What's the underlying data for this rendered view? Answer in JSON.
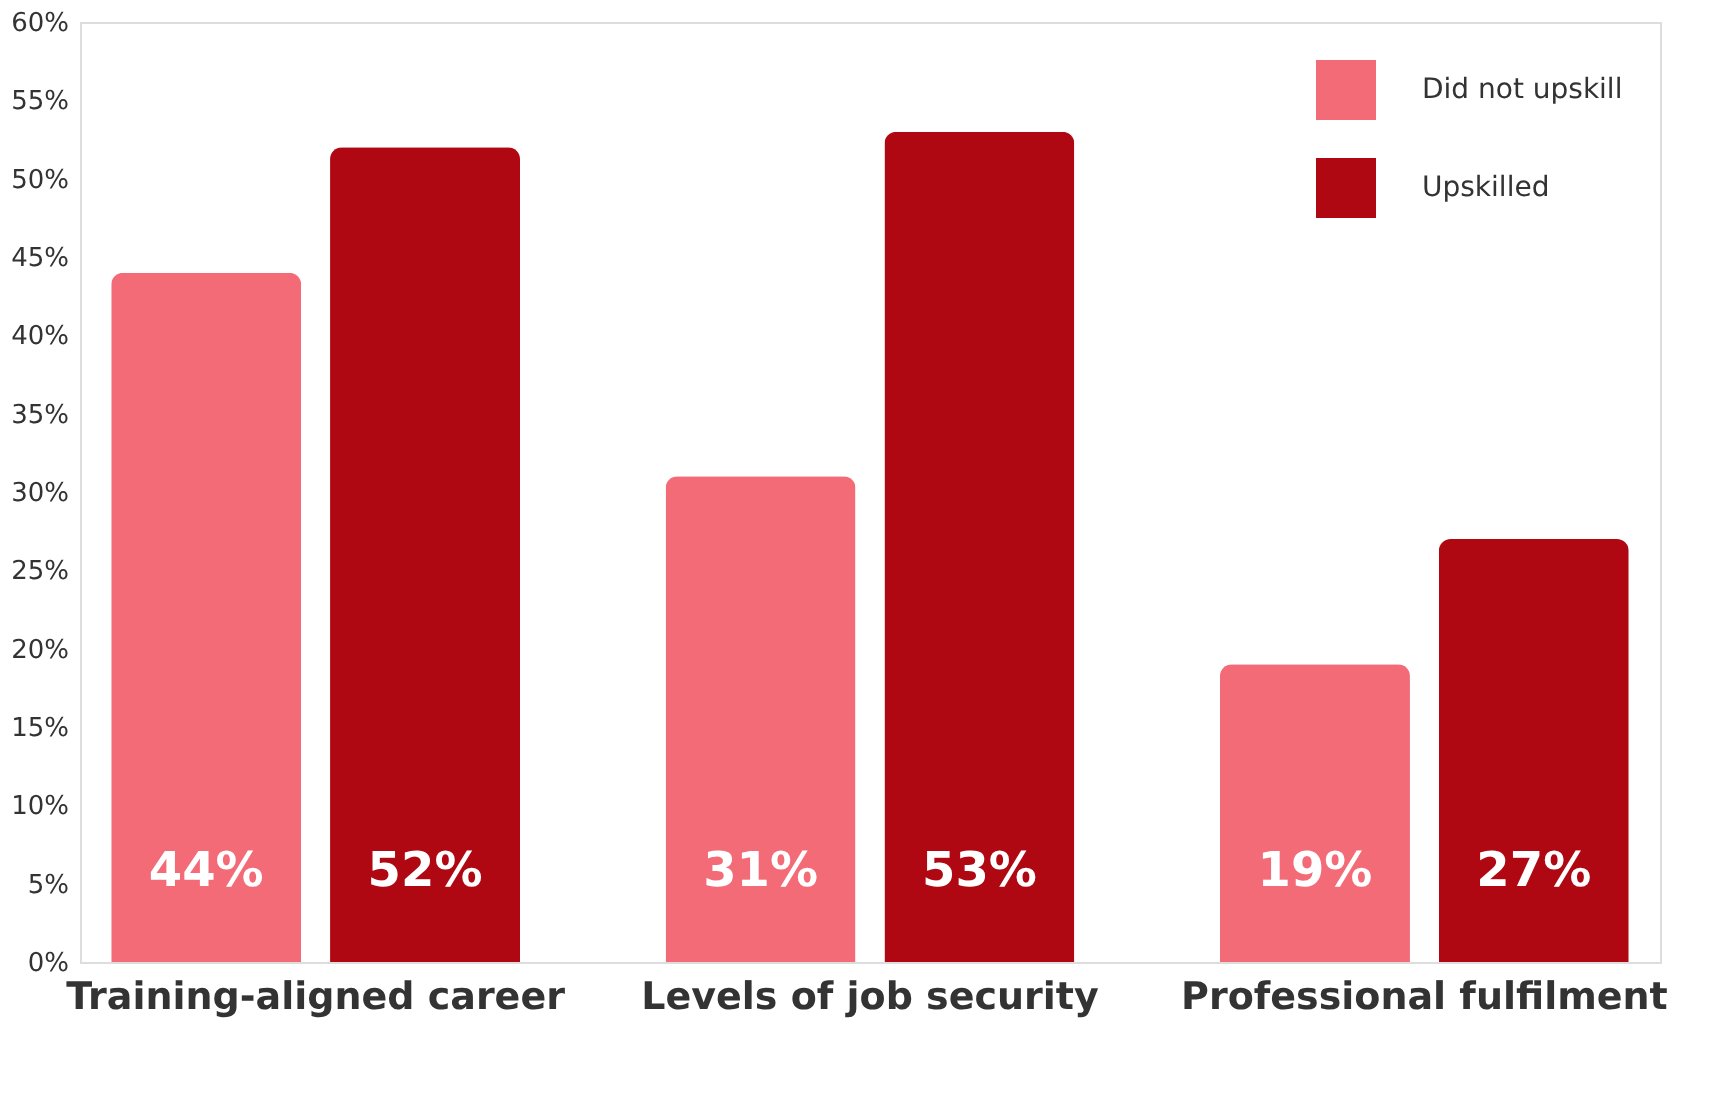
{
  "chart_data": {
    "type": "bar",
    "categories": [
      "Training-aligned career",
      "Levels of job security",
      "Professional fulfilment"
    ],
    "series": [
      {
        "name": "Did not upskill",
        "color": "#f26b77",
        "values": [
          44,
          31,
          19
        ],
        "value_labels": [
          "44%",
          "31%",
          "19%"
        ]
      },
      {
        "name": "Upskilled",
        "color": "#b00812",
        "values": [
          52,
          53,
          27
        ],
        "value_labels": [
          "52%",
          "53%",
          "27%"
        ]
      }
    ],
    "ylim": [
      0,
      60
    ],
    "yticks": [
      {
        "value": 0,
        "label": "0%"
      },
      {
        "value": 5,
        "label": "5%"
      },
      {
        "value": 10,
        "label": "10%"
      },
      {
        "value": 15,
        "label": "15%"
      },
      {
        "value": 20,
        "label": "20%"
      },
      {
        "value": 25,
        "label": "25%"
      },
      {
        "value": 30,
        "label": "30%"
      },
      {
        "value": 35,
        "label": "35%"
      },
      {
        "value": 40,
        "label": "40%"
      },
      {
        "value": 45,
        "label": "45%"
      },
      {
        "value": 50,
        "label": "50%"
      },
      {
        "value": 55,
        "label": "55%"
      },
      {
        "value": 60,
        "label": "60%"
      }
    ],
    "grid": false,
    "legend": "top right"
  }
}
